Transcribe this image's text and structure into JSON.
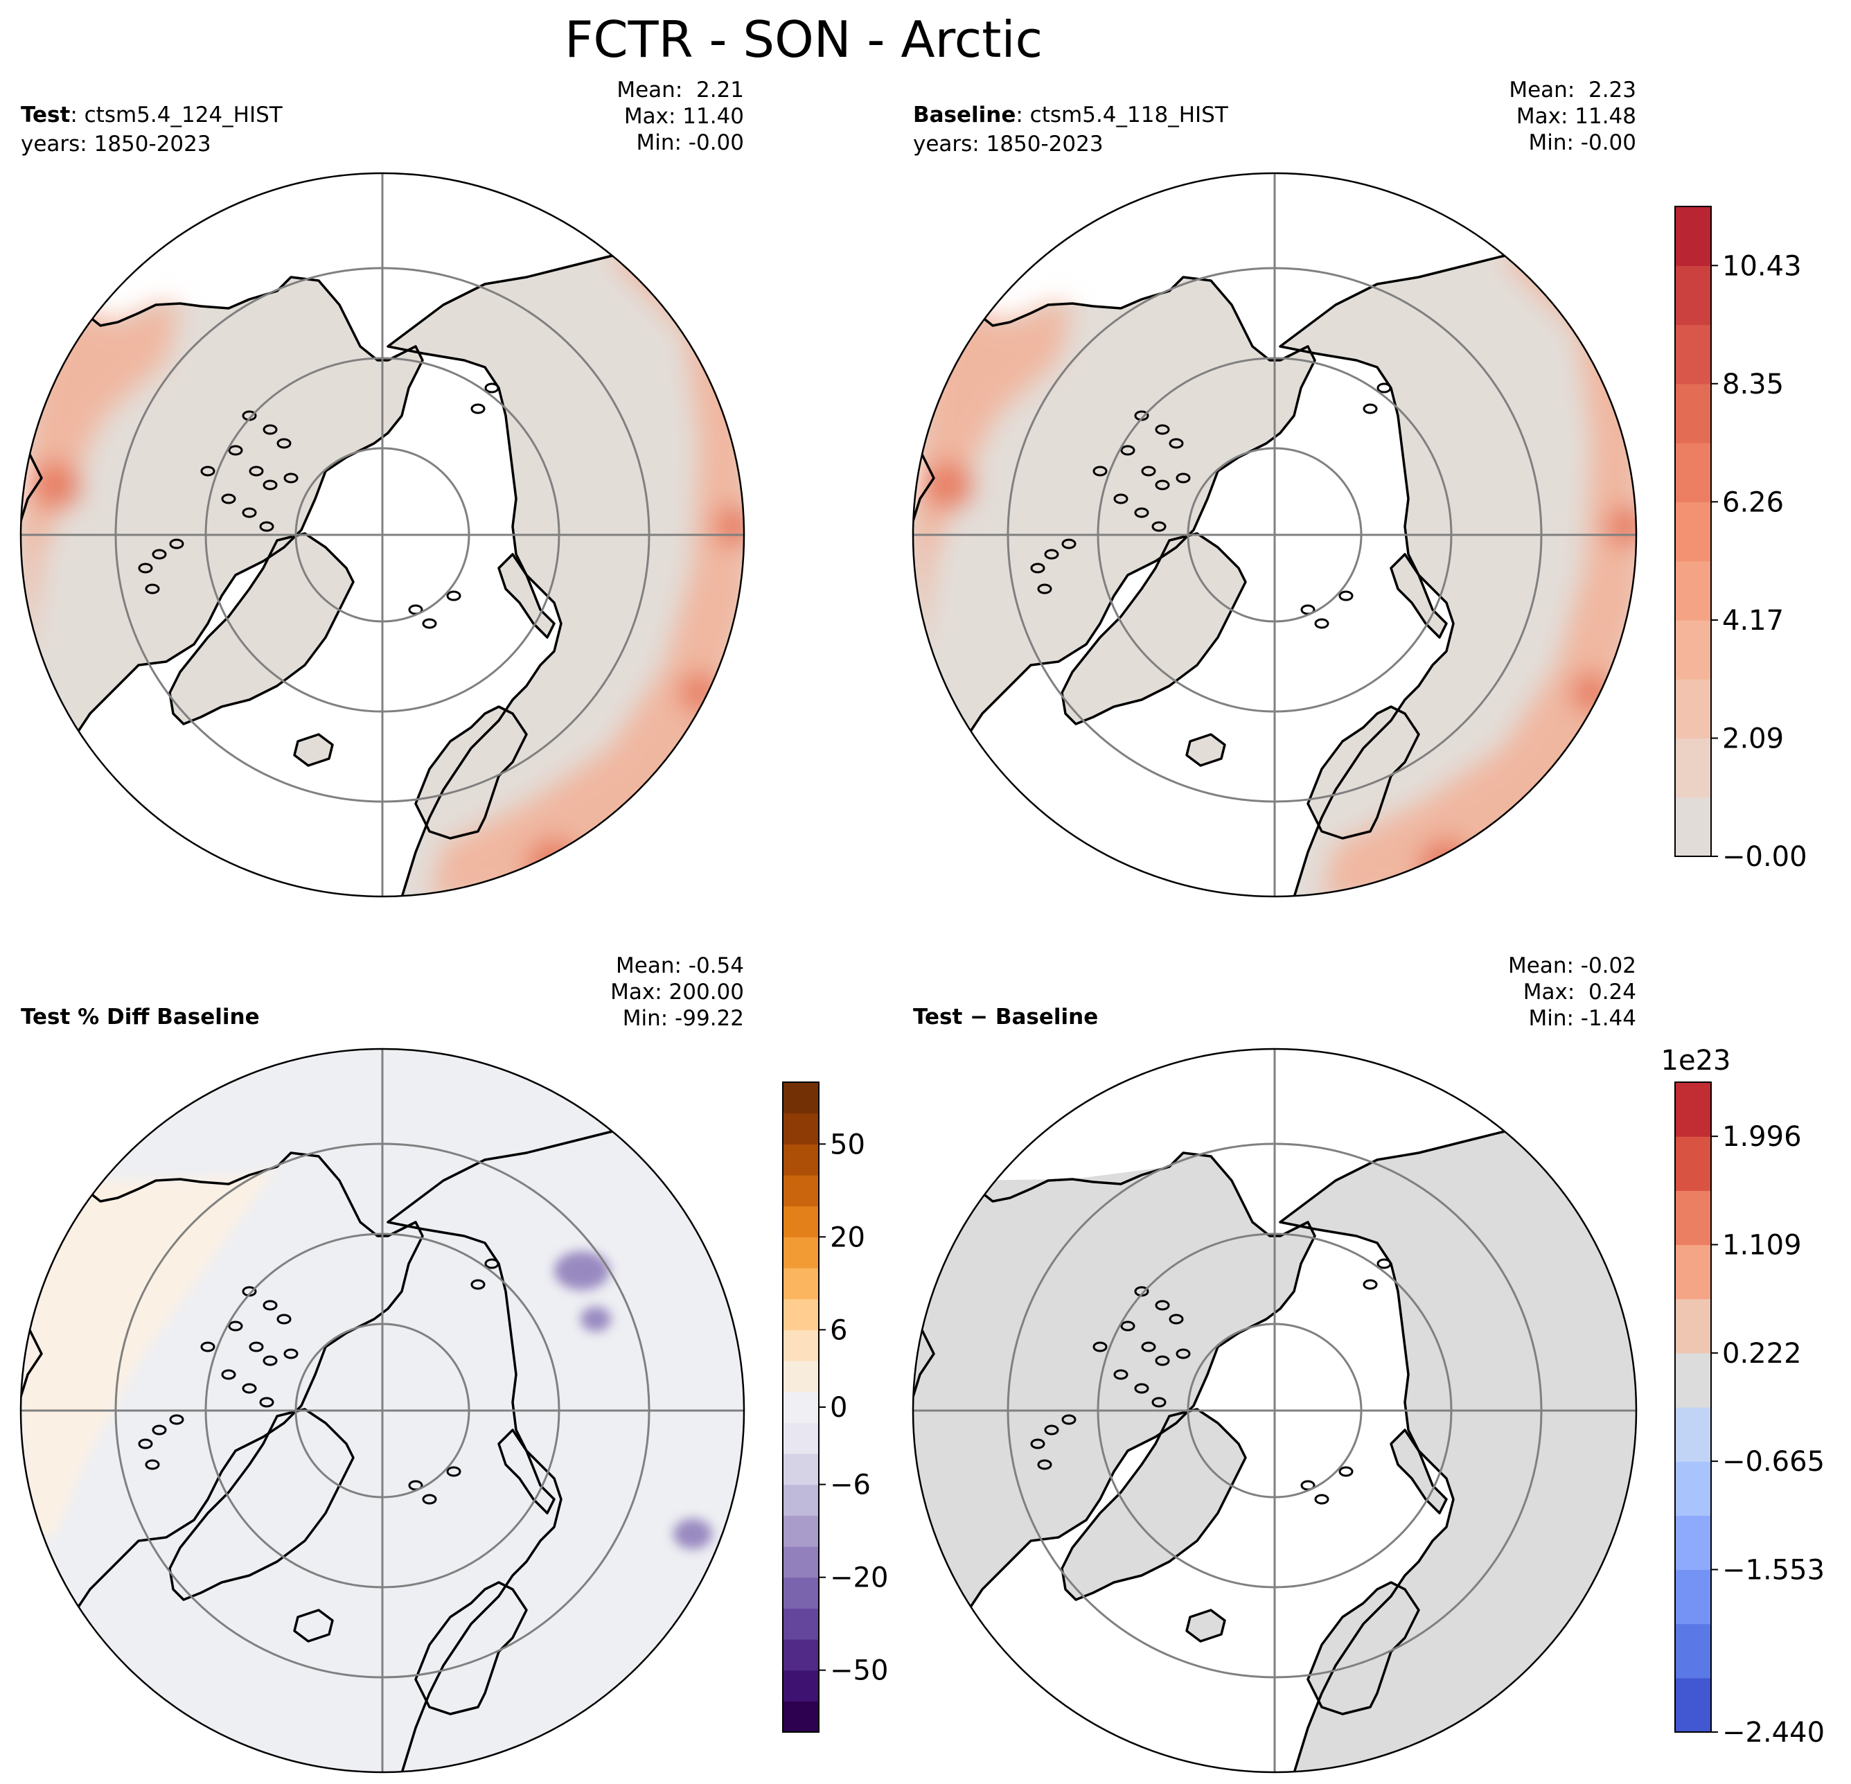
{
  "title": "FCTR - SON - Arctic",
  "panels": [
    {
      "id": "test",
      "label_bold": "Test",
      "label_rest": ": ctsm5.4_124_HIST",
      "years": "years: 1850-2023",
      "stats": [
        "Mean:  2.21",
        "Max: 11.40",
        "Min: -0.00"
      ],
      "field": "fctr"
    },
    {
      "id": "baseline",
      "label_bold": "Baseline",
      "label_rest": ": ctsm5.4_118_HIST",
      "years": "years: 1850-2023",
      "stats": [
        "Mean:  2.23",
        "Max: 11.48",
        "Min: -0.00"
      ],
      "field": "fctr"
    },
    {
      "id": "pctdiff",
      "label_bold": "Test % Diff Baseline",
      "label_rest": "",
      "years": "",
      "stats": [
        "Mean: -0.54",
        "Max: 200.00",
        "Min: -99.22"
      ],
      "field": "pct"
    },
    {
      "id": "diff",
      "label_bold": "Test − Baseline",
      "label_rest": "",
      "years": "",
      "stats": [
        "Mean: -0.02",
        "Max:  0.24",
        "Min: -1.44"
      ],
      "field": "diff"
    }
  ],
  "colorbars": {
    "fctr": {
      "ticks": [
        "10.43",
        "8.35",
        "6.26",
        "4.17",
        "2.09",
        "−0.00"
      ],
      "colors": [
        "#e2dcd8",
        "#ecd2c5",
        "#f2c4af",
        "#f5b59a",
        "#f5a385",
        "#f29272",
        "#ec7f62",
        "#e36c55",
        "#d8574a",
        "#ca4140",
        "#ba2533"
      ],
      "offset": ""
    },
    "pct": {
      "ticks": [
        "50",
        "20",
        "6",
        "0",
        "−6",
        "−20",
        "−50"
      ],
      "colors": [
        "#2d0050",
        "#3e1270",
        "#512a87",
        "#64469c",
        "#7a64ad",
        "#9280bd",
        "#a99ccb",
        "#bfb9da",
        "#d6d3e7",
        "#e8e7f1",
        "#f0f0f4",
        "#f8ecdc",
        "#fde0bd",
        "#fecd8f",
        "#fbb55e",
        "#f29b34",
        "#e3801a",
        "#cb650d",
        "#ad4f06",
        "#8f3b05",
        "#743005"
      ],
      "offset": ""
    },
    "diff": {
      "ticks": [
        "1.996",
        "1.109",
        "0.222",
        "−0.665",
        "−1.553",
        "−2.440"
      ],
      "colors": [
        "#4257d2",
        "#5a78e6",
        "#7593f4",
        "#8eaafc",
        "#a9c3fd",
        "#c2d4f6",
        "#dcdcdc",
        "#efc6b1",
        "#f4a585",
        "#eb7f61",
        "#d95342",
        "#c22d33"
      ],
      "offset": "1e23"
    }
  },
  "colors": {
    "fctr_base": "#e3ddd8",
    "fctr_mid": "#f0b7a0",
    "fctr_high": "#e87d62",
    "pct_base": "#eeeff3",
    "pct_warm": "#fbf0e4",
    "pct_purple": "#8a78b8",
    "diff_base": "#dcdcdc",
    "grid": "#808080",
    "coast": "#000000"
  },
  "map": {
    "projection": "north polar stereographic",
    "extent": "Arctic",
    "lat_circles": [
      80,
      70,
      60
    ],
    "meridians": [
      0,
      90,
      180,
      270
    ]
  }
}
